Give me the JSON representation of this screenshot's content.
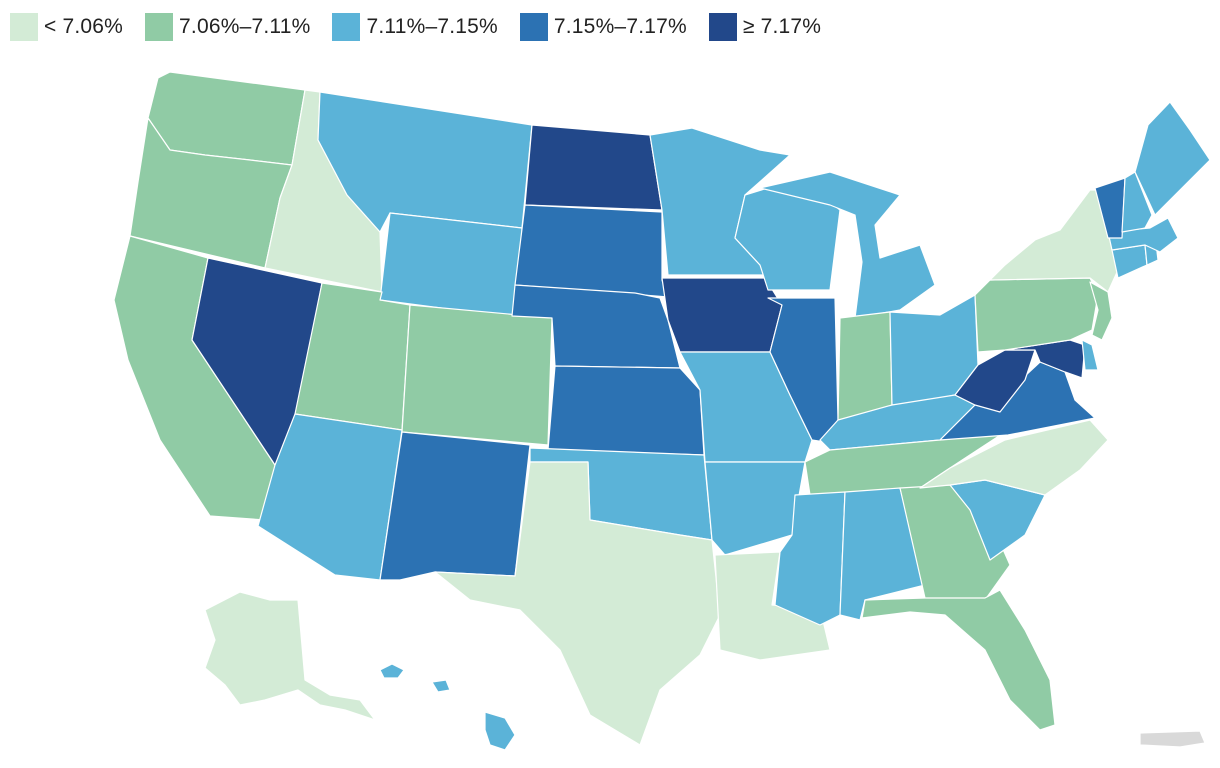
{
  "legend": [
    {
      "label": "< 7.06%",
      "color": "#d3ebd6"
    },
    {
      "label": "7.06%–7.11%",
      "color": "#90cba5"
    },
    {
      "label": "7.11%–7.15%",
      "color": "#5bb3d8"
    },
    {
      "label": "7.15%–7.17%",
      "color": "#2c72b3"
    },
    {
      "label": "≥ 7.17%",
      "color": "#22488a"
    }
  ],
  "no_data_color": "#d9d9d9",
  "states": {
    "WA": 1,
    "OR": 1,
    "CA": 1,
    "ID": 0,
    "NV": 4,
    "MT": 2,
    "WY": 2,
    "UT": 1,
    "AZ": 2,
    "CO": 1,
    "NM": 3,
    "ND": 4,
    "SD": 3,
    "NE": 3,
    "KS": 3,
    "OK": 2,
    "TX": 0,
    "MN": 2,
    "IA": 4,
    "MO": 2,
    "AR": 2,
    "LA": 0,
    "WI": 2,
    "IL": 3,
    "MI": 2,
    "IN": 1,
    "OH": 2,
    "KY": 2,
    "TN": 1,
    "MS": 2,
    "AL": 2,
    "GA": 1,
    "FL": 1,
    "SC": 2,
    "NC": 0,
    "VA": 3,
    "WV": 4,
    "MD": 4,
    "DE": 2,
    "PA": 1,
    "NJ": 1,
    "NY": 0,
    "CT": 2,
    "RI": 2,
    "MA": 2,
    "VT": 3,
    "NH": 2,
    "ME": 2,
    "AK": 0,
    "HI": 2,
    "PR": null
  }
}
